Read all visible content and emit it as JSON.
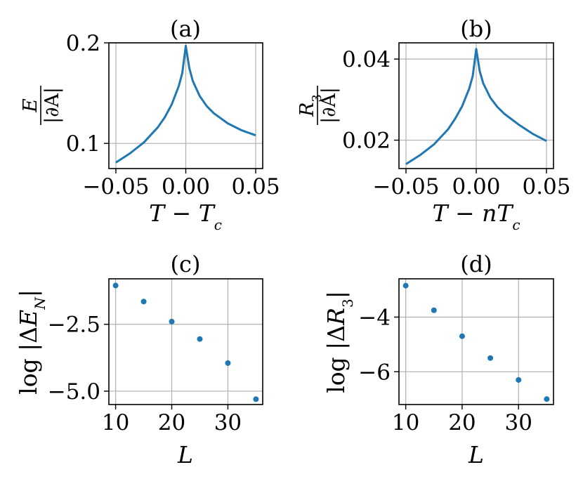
{
  "chart_data": [
    {
      "type": "line",
      "title": "(a)",
      "xlabel": "T − Tc",
      "ylabel": {
        "numerator": "E_N",
        "denominator": "|∂A|"
      },
      "xlim": [
        -0.055,
        0.055
      ],
      "ylim": [
        0.075,
        0.2
      ],
      "xticks": [
        -0.05,
        0.0,
        0.05
      ],
      "xtick_labels": [
        "−0.05",
        "0.00",
        "0.05"
      ],
      "yticks": [
        0.1,
        0.2
      ],
      "ytick_labels": [
        "0.1",
        "0.2"
      ],
      "grid": true,
      "color": "#1f77b4",
      "series": [
        {
          "x": [
            -0.05,
            -0.04,
            -0.03,
            -0.02,
            -0.015,
            -0.01,
            -0.005,
            -0.0025,
            0.0,
            0.0025,
            0.005,
            0.01,
            0.015,
            0.02,
            0.03,
            0.04,
            0.05
          ],
          "values": [
            0.081,
            0.09,
            0.101,
            0.116,
            0.126,
            0.139,
            0.157,
            0.17,
            0.197,
            0.175,
            0.162,
            0.147,
            0.137,
            0.13,
            0.12,
            0.113,
            0.108
          ]
        }
      ]
    },
    {
      "type": "line",
      "title": "(b)",
      "xlabel": "T − nTc",
      "ylabel": {
        "numerator": "R_3",
        "denominator": "|∂A|"
      },
      "xlim": [
        -0.055,
        0.055
      ],
      "ylim": [
        0.013,
        0.044
      ],
      "xticks": [
        -0.05,
        0.0,
        0.05
      ],
      "xtick_labels": [
        "−0.05",
        "0.00",
        "0.05"
      ],
      "yticks": [
        0.02,
        0.04
      ],
      "ytick_labels": [
        "0.02",
        "0.04"
      ],
      "grid": true,
      "color": "#1f77b4",
      "series": [
        {
          "x": [
            -0.05,
            -0.04,
            -0.03,
            -0.02,
            -0.015,
            -0.01,
            -0.005,
            -0.0025,
            0.0,
            0.0025,
            0.005,
            0.01,
            0.015,
            0.02,
            0.03,
            0.04,
            0.05
          ],
          "values": [
            0.0141,
            0.0163,
            0.019,
            0.0227,
            0.0253,
            0.0284,
            0.0327,
            0.0358,
            0.0425,
            0.037,
            0.034,
            0.0305,
            0.0282,
            0.0265,
            0.0239,
            0.0216,
            0.0198
          ]
        }
      ]
    },
    {
      "type": "scatter",
      "title": "(c)",
      "xlabel": "L",
      "ylabel": "log |ΔE_N|",
      "xlim": [
        8.8,
        36.2
      ],
      "ylim": [
        -5.5,
        -0.8
      ],
      "xticks": [
        10,
        20,
        30
      ],
      "xtick_labels": [
        "10",
        "20",
        "30"
      ],
      "yticks": [
        -2.5,
        -5.0
      ],
      "ytick_labels": [
        "−2.5",
        "−5.0"
      ],
      "grid": true,
      "color": "#1f77b4",
      "series": [
        {
          "x": [
            10,
            15,
            20,
            25,
            30,
            35
          ],
          "values": [
            -1.05,
            -1.65,
            -2.4,
            -3.05,
            -3.95,
            -5.3
          ]
        }
      ]
    },
    {
      "type": "scatter",
      "title": "(d)",
      "xlabel": "L",
      "ylabel": "log |ΔR_3|",
      "xlim": [
        8.8,
        36.2
      ],
      "ylim": [
        -7.2,
        -2.6
      ],
      "xticks": [
        10,
        20,
        30
      ],
      "xtick_labels": [
        "10",
        "20",
        "30"
      ],
      "yticks": [
        -4,
        -6
      ],
      "ytick_labels": [
        "−4",
        "−6"
      ],
      "grid": true,
      "color": "#1f77b4",
      "series": [
        {
          "x": [
            10,
            15,
            20,
            25,
            30,
            35
          ],
          "values": [
            -2.85,
            -3.75,
            -4.7,
            -5.5,
            -6.3,
            -7.0
          ]
        }
      ]
    }
  ]
}
